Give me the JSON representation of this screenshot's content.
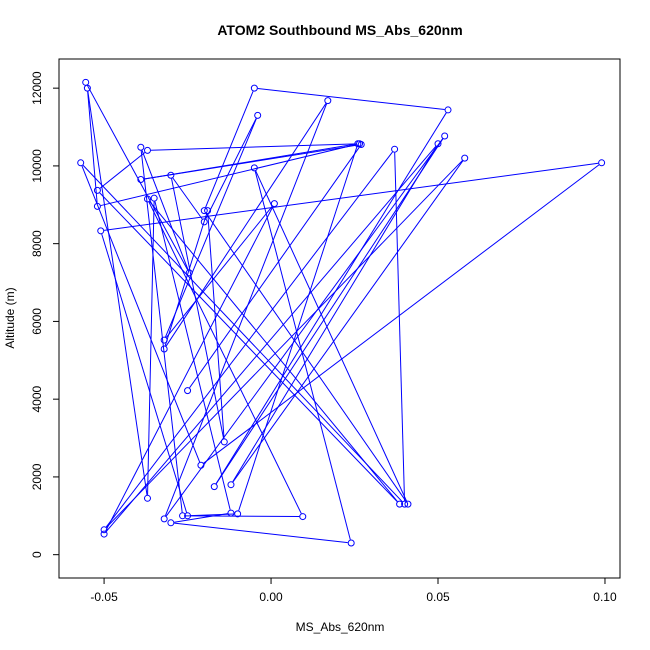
{
  "chart_data": {
    "type": "line",
    "title": "ATOM2 Southbound MS_Abs_620nm",
    "xlabel": "MS_Abs_620nm",
    "ylabel": "Altitude (m)",
    "xlim": [
      -0.0635,
      0.1045
    ],
    "ylim": [
      -600,
      12750
    ],
    "x_ticks": [
      -0.05,
      0.0,
      0.05,
      0.1
    ],
    "x_tick_labels": [
      "-0.05",
      "0.00",
      "0.05",
      "0.10"
    ],
    "y_ticks": [
      0,
      2000,
      4000,
      6000,
      8000,
      10000,
      12000
    ],
    "y_tick_labels": [
      "0",
      "2000",
      "4000",
      "6000",
      "8000",
      "10000",
      "12000"
    ],
    "grid": false,
    "series_color": "#0000ff",
    "marker": "open-circle",
    "points": [
      {
        "x": -0.0555,
        "y": 12150
      },
      {
        "x": -0.0245,
        "y": 7250
      },
      {
        "x": -0.039,
        "y": 10480
      },
      {
        "x": -0.0265,
        "y": 1000
      },
      {
        "x": 0.0095,
        "y": 980
      },
      {
        "x": -0.037,
        "y": 9150
      },
      {
        "x": 0.0385,
        "y": 1300
      },
      {
        "x": -0.052,
        "y": 9370
      },
      {
        "x": -0.037,
        "y": 10400
      },
      {
        "x": 0.0265,
        "y": 10570
      },
      {
        "x": -0.052,
        "y": 8960
      },
      {
        "x": -0.055,
        "y": 12000
      },
      {
        "x": -0.037,
        "y": 1450
      },
      {
        "x": -0.035,
        "y": 9170
      },
      {
        "x": -0.012,
        "y": 1070
      },
      {
        "x": -0.03,
        "y": 820
      },
      {
        "x": 0.024,
        "y": 300
      },
      {
        "x": -0.005,
        "y": 9950
      },
      {
        "x": 0.041,
        "y": 1300
      },
      {
        "x": -0.02,
        "y": 8850
      },
      {
        "x": -0.005,
        "y": 12000
      },
      {
        "x": 0.053,
        "y": 11440
      },
      {
        "x": -0.017,
        "y": 1750
      },
      {
        "x": 0.052,
        "y": 10770
      },
      {
        "x": -0.032,
        "y": 920
      },
      {
        "x": 0.017,
        "y": 11680
      },
      {
        "x": -0.032,
        "y": 5290
      },
      {
        "x": -0.019,
        "y": 8850
      },
      {
        "x": -0.014,
        "y": 2900
      },
      {
        "x": -0.03,
        "y": 9760
      },
      {
        "x": -0.02,
        "y": 8560
      },
      {
        "x": -0.004,
        "y": 11300
      },
      {
        "x": -0.032,
        "y": 5520
      },
      {
        "x": 0.001,
        "y": 9030
      },
      {
        "x": -0.05,
        "y": 530
      },
      {
        "x": 0.05,
        "y": 10570
      },
      {
        "x": -0.012,
        "y": 1800
      },
      {
        "x": 0.058,
        "y": 10200
      },
      {
        "x": -0.05,
        "y": 640
      },
      {
        "x": 0.037,
        "y": 10430
      },
      {
        "x": 0.04,
        "y": 1300
      },
      {
        "x": -0.057,
        "y": 10080
      },
      {
        "x": -0.021,
        "y": 2300
      },
      {
        "x": 0.099,
        "y": 10080
      },
      {
        "x": -0.051,
        "y": 8330
      },
      {
        "x": -0.025,
        "y": 1000
      },
      {
        "x": -0.01,
        "y": 1050
      },
      {
        "x": 0.026,
        "y": 10570
      },
      {
        "x": -0.039,
        "y": 9650
      },
      {
        "x": 0.027,
        "y": 10550
      },
      {
        "x": -0.025,
        "y": 4220
      }
    ]
  }
}
